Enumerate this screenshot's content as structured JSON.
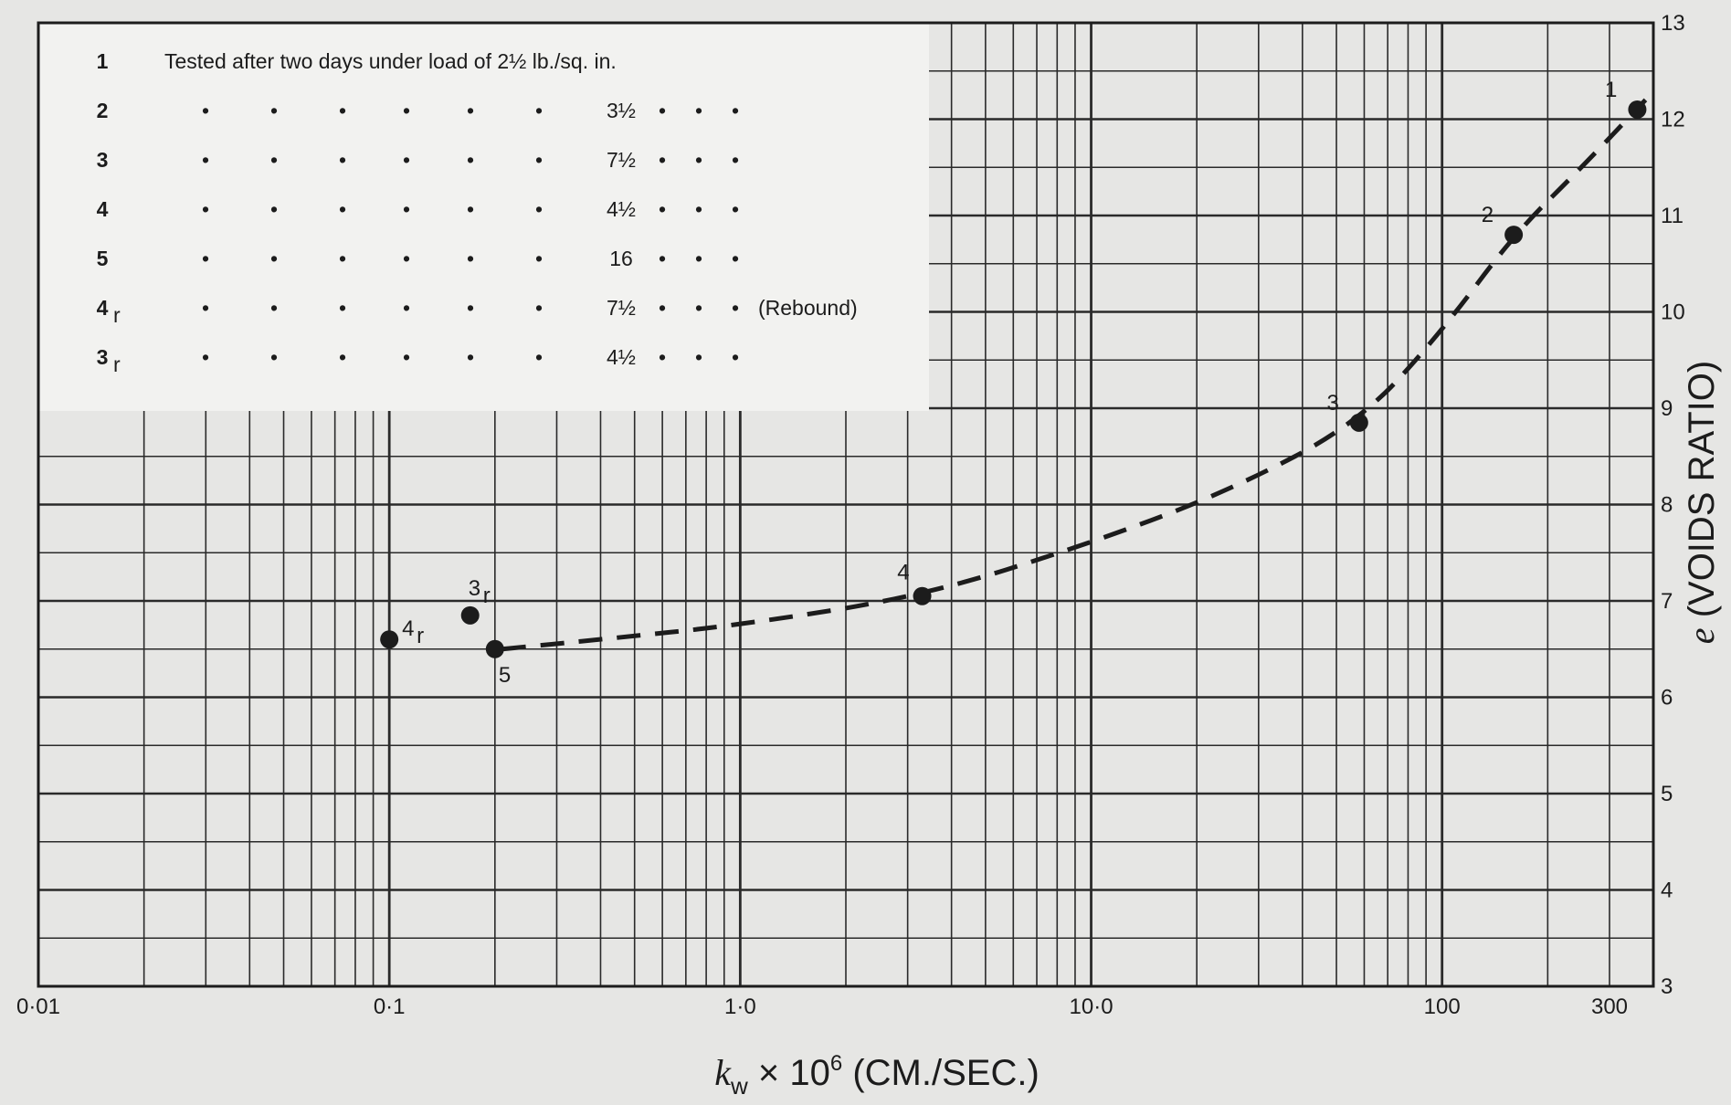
{
  "chart_data": {
    "type": "scatter",
    "x_scale": "log",
    "xlim": [
      0.01,
      400
    ],
    "ylim": [
      3,
      13
    ],
    "grid": true,
    "xlabel_main": "k",
    "xlabel_sub": "w",
    "xlabel_rest": " × 10",
    "xlabel_exp": "6",
    "xlabel_units": " (CM./SEC.)",
    "ylabel_e": "e",
    "ylabel_rest": " (VOIDS RATIO)",
    "x_ticks": [
      {
        "value": 0.01,
        "label": "0·01"
      },
      {
        "value": 0.1,
        "label": "0·1"
      },
      {
        "value": 1,
        "label": "1·0"
      },
      {
        "value": 10,
        "label": "10·0"
      },
      {
        "value": 100,
        "label": "100"
      },
      {
        "value": 300,
        "label": "300"
      }
    ],
    "y_ticks": [
      3,
      4,
      5,
      6,
      7,
      8,
      9,
      10,
      11,
      12,
      13
    ],
    "legend": {
      "placement": "top-left",
      "rows": [
        {
          "id": "1",
          "text": "Tested after two days under load of 2½ lb./sq. in."
        },
        {
          "id": "2",
          "text": "3½"
        },
        {
          "id": "3",
          "text": "7½"
        },
        {
          "id": "4",
          "text": "4½"
        },
        {
          "id": "5",
          "text": "16"
        },
        {
          "id": "4r",
          "text": "7½",
          "suffix": "(Rebound)"
        },
        {
          "id": "3r",
          "text": "4½"
        }
      ],
      "ditto": "•"
    },
    "points": [
      {
        "label": "1",
        "x": 360,
        "e": 12.1
      },
      {
        "label": "2",
        "x": 160,
        "e": 10.8
      },
      {
        "label": "3",
        "x": 58,
        "e": 8.85
      },
      {
        "label": "4",
        "x": 3.3,
        "e": 7.05
      },
      {
        "label": "5",
        "x": 0.2,
        "e": 6.5
      },
      {
        "label": "4r",
        "x": 0.1,
        "e": 6.6
      },
      {
        "label": "3r",
        "x": 0.17,
        "e": 6.85
      }
    ],
    "curve": [
      [
        0.21,
        6.5
      ],
      [
        0.4,
        6.6
      ],
      [
        1,
        6.75
      ],
      [
        3.3,
        7.05
      ],
      [
        10,
        7.6
      ],
      [
        25,
        8.15
      ],
      [
        58,
        8.85
      ],
      [
        100,
        9.8
      ],
      [
        160,
        10.8
      ],
      [
        250,
        11.5
      ],
      [
        380,
        12.2
      ]
    ]
  }
}
